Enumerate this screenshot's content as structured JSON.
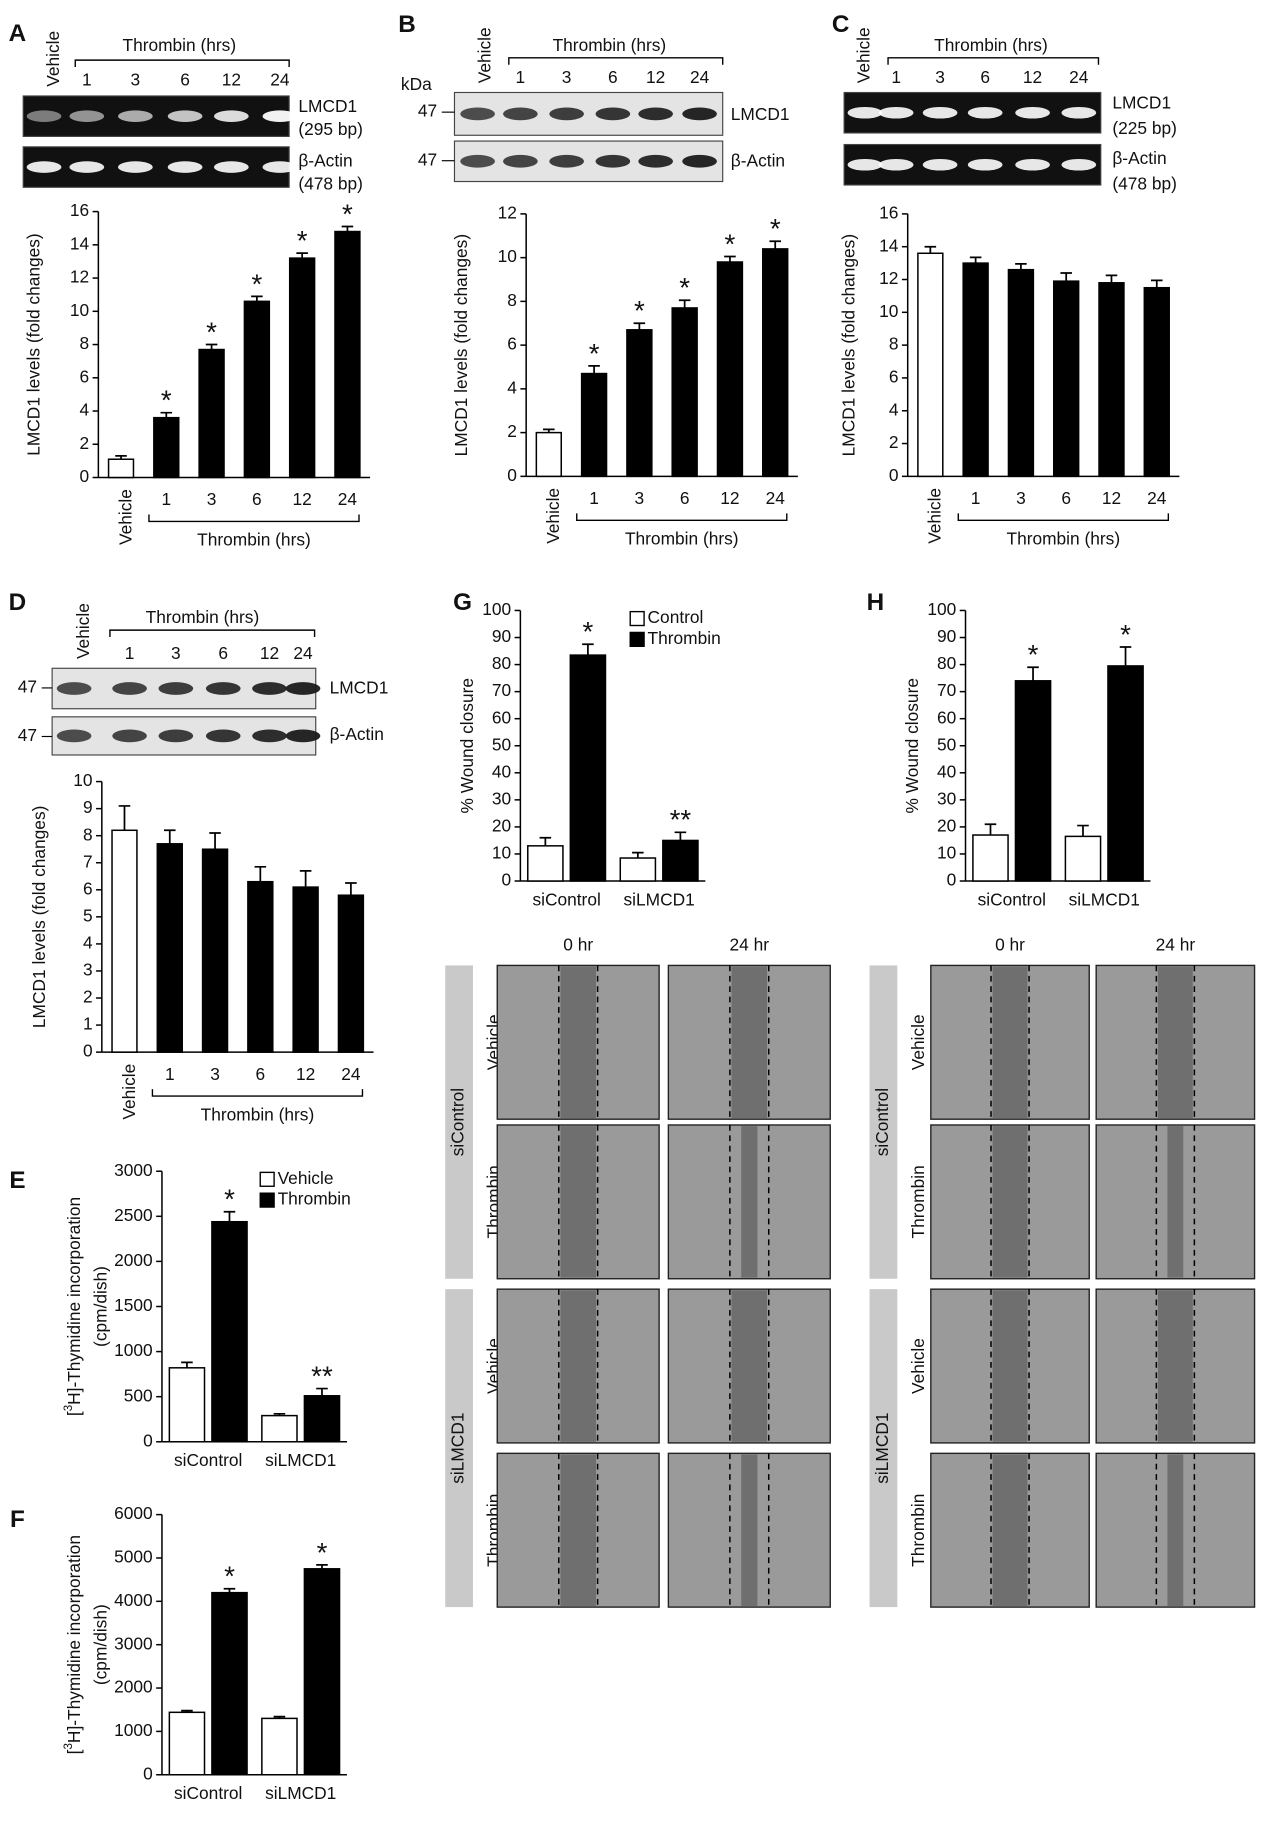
{
  "chart_data": [
    {
      "type": "bar",
      "panel": "A",
      "ylabel": "LMCD1 levels (fold changes)",
      "categories": [
        "Vehicle",
        "1",
        "3",
        "6",
        "12",
        "24"
      ],
      "group_label": "Thrombin (hrs)",
      "values": [
        1.1,
        3.6,
        7.7,
        10.6,
        13.2,
        14.8
      ],
      "errors": [
        0.2,
        0.3,
        0.3,
        0.3,
        0.3,
        0.3
      ],
      "annotations": [
        null,
        "*",
        "*",
        "*",
        "*",
        "*"
      ],
      "colors": [
        "#ffffff",
        "#000000",
        "#000000",
        "#000000",
        "#000000",
        "#000000"
      ],
      "ylim": [
        0,
        16
      ],
      "yticks": [
        0,
        2,
        4,
        6,
        8,
        10,
        12,
        14,
        16
      ]
    },
    {
      "type": "bar",
      "panel": "B",
      "ylabel": "LMCD1 levels (fold changes)",
      "categories": [
        "Vehicle",
        "1",
        "3",
        "6",
        "12",
        "24"
      ],
      "group_label": "Thrombin (hrs)",
      "values": [
        2.0,
        4.7,
        6.7,
        7.7,
        9.8,
        10.4
      ],
      "errors": [
        0.15,
        0.35,
        0.3,
        0.35,
        0.25,
        0.35
      ],
      "annotations": [
        null,
        "*",
        "*",
        "*",
        "*",
        "*"
      ],
      "colors": [
        "#ffffff",
        "#000000",
        "#000000",
        "#000000",
        "#000000",
        "#000000"
      ],
      "ylim": [
        0,
        12
      ],
      "yticks": [
        0,
        2,
        4,
        6,
        8,
        10,
        12
      ]
    },
    {
      "type": "bar",
      "panel": "C",
      "ylabel": "LMCD1 levels (fold changes)",
      "categories": [
        "Vehicle",
        "1",
        "3",
        "6",
        "12",
        "24"
      ],
      "group_label": "Thrombin (hrs)",
      "values": [
        13.6,
        13.0,
        12.6,
        11.9,
        11.8,
        11.5
      ],
      "errors": [
        0.4,
        0.35,
        0.35,
        0.5,
        0.45,
        0.45
      ],
      "colors": [
        "#ffffff",
        "#000000",
        "#000000",
        "#000000",
        "#000000",
        "#000000"
      ],
      "ylim": [
        0,
        16
      ],
      "yticks": [
        0,
        2,
        4,
        6,
        8,
        10,
        12,
        14,
        16
      ]
    },
    {
      "type": "bar",
      "panel": "D",
      "ylabel": "LMCD1 levels (fold changes)",
      "categories": [
        "Vehicle",
        "1",
        "3",
        "6",
        "12",
        "24"
      ],
      "group_label": "Thrombin (hrs)",
      "values": [
        8.2,
        7.7,
        7.5,
        6.3,
        6.1,
        5.8
      ],
      "errors": [
        0.9,
        0.5,
        0.6,
        0.55,
        0.6,
        0.45
      ],
      "colors": [
        "#ffffff",
        "#000000",
        "#000000",
        "#000000",
        "#000000",
        "#000000"
      ],
      "ylim": [
        0,
        10
      ],
      "yticks": [
        0,
        1,
        2,
        3,
        4,
        5,
        6,
        7,
        8,
        9,
        10
      ]
    },
    {
      "type": "grouped_bar",
      "panel": "E",
      "ylabel_parts": [
        "[",
        "3",
        "H]-Thymidine incorporation"
      ],
      "ylabel_line2": "(cpm/dish)",
      "categories": [
        "siControl",
        "siLMCD1"
      ],
      "legend": "top-right",
      "series": [
        {
          "name": "Vehicle",
          "color": "#ffffff",
          "values": [
            820,
            290
          ],
          "errors": [
            60,
            20
          ]
        },
        {
          "name": "Thrombin",
          "color": "#000000",
          "values": [
            2440,
            510
          ],
          "errors": [
            110,
            80
          ],
          "annotations": [
            "*",
            "**"
          ]
        }
      ],
      "ylim": [
        0,
        3000
      ],
      "yticks": [
        0,
        500,
        1000,
        1500,
        2000,
        2500,
        3000
      ]
    },
    {
      "type": "grouped_bar",
      "panel": "F",
      "ylabel_parts": [
        "[",
        "3",
        "H]-Thymidine incorporation"
      ],
      "ylabel_line2": "(cpm/dish)",
      "categories": [
        "siControl",
        "siLMCD1"
      ],
      "series": [
        {
          "color": "#ffffff",
          "values": [
            1440,
            1300
          ],
          "errors": [
            40,
            40
          ]
        },
        {
          "color": "#000000",
          "values": [
            4200,
            4750
          ],
          "errors": [
            90,
            90
          ],
          "annotations": [
            "*",
            "*"
          ]
        }
      ],
      "ylim": [
        0,
        6000
      ],
      "yticks": [
        0,
        1000,
        2000,
        3000,
        4000,
        5000,
        6000
      ]
    },
    {
      "type": "grouped_bar",
      "panel": "G",
      "ylabel": "% Wound closure",
      "categories": [
        "siControl",
        "siLMCD1"
      ],
      "legend": "top-right",
      "series": [
        {
          "name": "Control",
          "color": "#ffffff",
          "values": [
            13,
            8.5
          ],
          "errors": [
            3,
            2
          ]
        },
        {
          "name": "Thrombin",
          "color": "#000000",
          "values": [
            83.5,
            15
          ],
          "errors": [
            4,
            3
          ],
          "annotations": [
            "*",
            "**"
          ]
        }
      ],
      "ylim": [
        0,
        100
      ],
      "yticks": [
        0,
        10,
        20,
        30,
        40,
        50,
        60,
        70,
        80,
        90,
        100
      ]
    },
    {
      "type": "grouped_bar",
      "panel": "H",
      "ylabel": "% Wound closure",
      "categories": [
        "siControl",
        "siLMCD1"
      ],
      "series": [
        {
          "color": "#ffffff",
          "values": [
            17,
            16.5
          ],
          "errors": [
            4,
            4
          ]
        },
        {
          "color": "#000000",
          "values": [
            74,
            79.5
          ],
          "errors": [
            5,
            7
          ],
          "annotations": [
            "*",
            "*"
          ]
        }
      ],
      "ylim": [
        0,
        100
      ],
      "yticks": [
        0,
        10,
        20,
        30,
        40,
        50,
        60,
        70,
        80,
        90,
        100
      ]
    }
  ],
  "blots": [
    {
      "vehicle": "Vehicle",
      "group": "Thrombin (hrs)",
      "lanes": [
        "1",
        "3",
        "6",
        "12",
        "24"
      ],
      "rows": [
        [
          "LMCD1",
          "(295 bp)"
        ],
        [
          "β-Actin",
          "(478 bp)"
        ]
      ]
    },
    {
      "vehicle": "Vehicle",
      "group": "Thrombin (hrs)",
      "lanes": [
        "1",
        "3",
        "6",
        "12",
        "24"
      ],
      "unit": "kDa",
      "markers": [
        "47",
        "47"
      ],
      "rows": [
        [
          "LMCD1"
        ],
        [
          "β-Actin"
        ]
      ]
    },
    {
      "vehicle": "Vehicle",
      "group": "Thrombin (hrs)",
      "lanes": [
        "1",
        "3",
        "6",
        "12",
        "24"
      ],
      "rows": [
        [
          "LMCD1",
          "(225 bp)"
        ],
        [
          "β-Actin",
          "(478 bp)"
        ]
      ]
    },
    {
      "vehicle": "Vehicle",
      "group": "Thrombin (hrs)",
      "lanes": [
        "1",
        "3",
        "6",
        "12",
        "24"
      ],
      "markers": [
        "47",
        "47"
      ],
      "rows": [
        [
          "LMCD1"
        ],
        [
          "β-Actin"
        ]
      ]
    }
  ],
  "micrographs": [
    {
      "columns": [
        "0 hr",
        "24 hr"
      ],
      "groups": [
        {
          "name": "siControl",
          "rows": [
            "Vehicle",
            "Thrombin"
          ]
        },
        {
          "name": "siLMCD1",
          "rows": [
            "Vehicle",
            "Thrombin"
          ]
        }
      ]
    },
    {
      "columns": [
        "0 hr",
        "24 hr"
      ],
      "groups": [
        {
          "name": "siControl",
          "rows": [
            "Vehicle",
            "Thrombin"
          ]
        },
        {
          "name": "siLMCD1",
          "rows": [
            "Vehicle",
            "Thrombin"
          ]
        }
      ]
    }
  ]
}
